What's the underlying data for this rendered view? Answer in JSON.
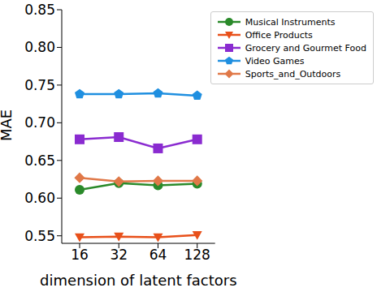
{
  "chart_data": {
    "type": "line",
    "x_label": "dimension of latent factors",
    "y_label": "MAE",
    "categories": [
      "16",
      "32",
      "64",
      "128"
    ],
    "ylim": [
      0.54,
      0.85
    ],
    "yticks": [
      0.55,
      {
        "value": 0.6,
        "label": "0.60"
      },
      0.65,
      {
        "value": 0.7,
        "label": "0.70"
      },
      0.75,
      {
        "value": 0.8,
        "label": "0.80"
      },
      0.85
    ],
    "legend": "upper right",
    "series": [
      {
        "name": "Musical Instruments",
        "color": "#2a8a2a",
        "marker": "circle",
        "values": [
          0.611,
          0.62,
          0.617,
          0.619
        ]
      },
      {
        "name": "Office Products",
        "color": "#e8501a",
        "marker": "triangle_down",
        "values": [
          0.548,
          0.549,
          0.548,
          0.551
        ]
      },
      {
        "name": "Grocery and Gourmet Food",
        "color": "#8a2bd0",
        "marker": "square",
        "values": [
          0.678,
          0.681,
          0.666,
          0.678
        ]
      },
      {
        "name": "Video Games",
        "color": "#1f8fe0",
        "marker": "pentagon",
        "values": [
          0.738,
          0.738,
          0.739,
          0.736
        ]
      },
      {
        "name": "Sports_and_Outdoors",
        "color": "#e07848",
        "marker": "diamond",
        "values": [
          0.627,
          0.622,
          0.623,
          0.623
        ]
      }
    ]
  }
}
